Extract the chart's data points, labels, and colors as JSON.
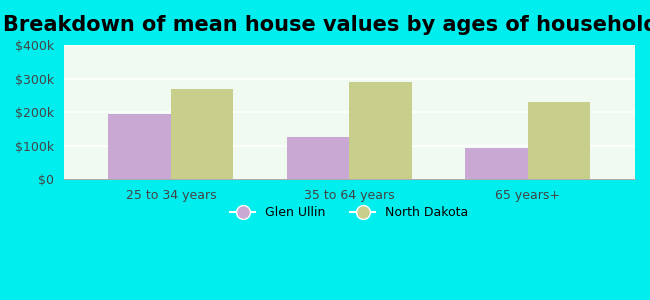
{
  "title": "Breakdown of mean house values by ages of householders",
  "categories": [
    "25 to 34 years",
    "35 to 64 years",
    "65 years+"
  ],
  "series": [
    {
      "label": "Glen Ullin",
      "values": [
        195000,
        125000,
        95000
      ],
      "color": "#C9A8D4"
    },
    {
      "label": "North Dakota",
      "values": [
        270000,
        290000,
        230000
      ],
      "color": "#C8CF8A"
    }
  ],
  "ylim": [
    0,
    400000
  ],
  "yticks": [
    0,
    100000,
    200000,
    300000,
    400000
  ],
  "ytick_labels": [
    "$0",
    "$100k",
    "$200k",
    "$300k",
    "$400k"
  ],
  "background_color": "#00EEEE",
  "plot_bg_color": "#f0faf0",
  "title_fontsize": 15,
  "bar_width": 0.35
}
